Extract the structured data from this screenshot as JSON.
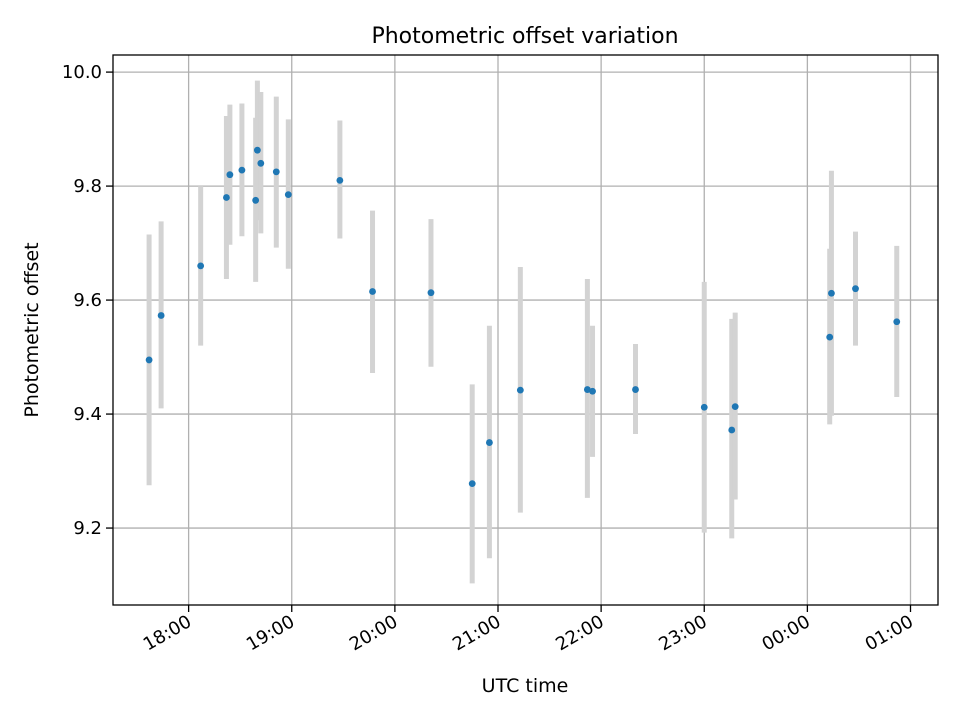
{
  "chart_data": {
    "type": "scatter",
    "title": "Photometric offset variation",
    "xlabel": "UTC time",
    "ylabel": "Photometric offset",
    "x_range": [
      "17:16",
      "01:16"
    ],
    "ylim": [
      9.065,
      10.03
    ],
    "grid": true,
    "x_ticks": [
      "18:00",
      "19:00",
      "20:00",
      "21:00",
      "22:00",
      "23:00",
      "00:00",
      "01:00"
    ],
    "y_ticks": [
      "9.2",
      "9.4",
      "9.6",
      "9.8",
      "10.0"
    ],
    "colors": {
      "point": "#1f77b4",
      "error_bar": "#d3d3d3",
      "grid": "#b0b0b0"
    },
    "series": [
      {
        "points": [
          {
            "t": "17:37",
            "y": 9.495,
            "lo": 9.275,
            "hi": 9.715
          },
          {
            "t": "17:44",
            "y": 9.573,
            "lo": 9.41,
            "hi": 9.738
          },
          {
            "t": "18:07",
            "y": 9.66,
            "lo": 9.52,
            "hi": 9.8
          },
          {
            "t": "18:22",
            "y": 9.78,
            "lo": 9.637,
            "hi": 9.923
          },
          {
            "t": "18:24",
            "y": 9.82,
            "lo": 9.697,
            "hi": 9.943
          },
          {
            "t": "18:31",
            "y": 9.828,
            "lo": 9.712,
            "hi": 9.945
          },
          {
            "t": "18:39",
            "y": 9.775,
            "lo": 9.632,
            "hi": 9.92
          },
          {
            "t": "18:40",
            "y": 9.863,
            "lo": 9.74,
            "hi": 9.985
          },
          {
            "t": "18:42",
            "y": 9.84,
            "lo": 9.717,
            "hi": 9.965
          },
          {
            "t": "18:51",
            "y": 9.825,
            "lo": 9.692,
            "hi": 9.957
          },
          {
            "t": "18:58",
            "y": 9.785,
            "lo": 9.655,
            "hi": 9.917
          },
          {
            "t": "19:28",
            "y": 9.81,
            "lo": 9.708,
            "hi": 9.915
          },
          {
            "t": "19:47",
            "y": 9.615,
            "lo": 9.472,
            "hi": 9.757
          },
          {
            "t": "20:21",
            "y": 9.613,
            "lo": 9.483,
            "hi": 9.742
          },
          {
            "t": "20:45",
            "y": 9.278,
            "lo": 9.103,
            "hi": 9.452
          },
          {
            "t": "20:55",
            "y": 9.35,
            "lo": 9.147,
            "hi": 9.555
          },
          {
            "t": "21:13",
            "y": 9.442,
            "lo": 9.227,
            "hi": 9.658
          },
          {
            "t": "21:52",
            "y": 9.443,
            "lo": 9.253,
            "hi": 9.637
          },
          {
            "t": "21:55",
            "y": 9.44,
            "lo": 9.325,
            "hi": 9.555
          },
          {
            "t": "22:20",
            "y": 9.443,
            "lo": 9.365,
            "hi": 9.523
          },
          {
            "t": "23:00",
            "y": 9.412,
            "lo": 9.192,
            "hi": 9.632
          },
          {
            "t": "23:16",
            "y": 9.372,
            "lo": 9.182,
            "hi": 9.567
          },
          {
            "t": "23:18",
            "y": 9.413,
            "lo": 9.25,
            "hi": 9.578
          },
          {
            "t": "00:13",
            "y": 9.535,
            "lo": 9.382,
            "hi": 9.69
          },
          {
            "t": "00:14",
            "y": 9.612,
            "lo": 9.397,
            "hi": 9.827
          },
          {
            "t": "00:28",
            "y": 9.62,
            "lo": 9.52,
            "hi": 9.72
          },
          {
            "t": "00:52",
            "y": 9.562,
            "lo": 9.43,
            "hi": 9.695
          }
        ]
      }
    ]
  }
}
